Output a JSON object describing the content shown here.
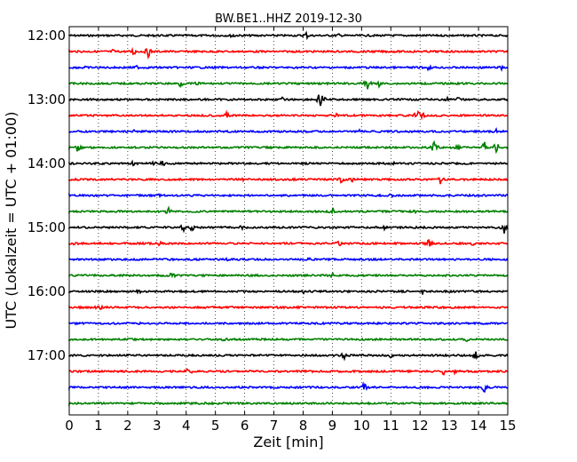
{
  "chart_data": {
    "type": "line",
    "title": "BW.BE1..HHZ 2019-12-30",
    "xlabel": "Zeit  [min]",
    "ylabel": "UTC (Lokalzeit = UTC + 01:00)",
    "xlim": [
      0,
      15
    ],
    "x_ticks": [
      "0",
      "1",
      "2",
      "3",
      "4",
      "5",
      "6",
      "7",
      "8",
      "9",
      "10",
      "11",
      "12",
      "13",
      "14",
      "15"
    ],
    "y_ticks": [
      "12:00",
      "13:00",
      "14:00",
      "15:00",
      "16:00",
      "17:00"
    ],
    "vertical_grid": "dotted",
    "trace_colors": [
      "#000000",
      "#ff0000",
      "#0000ff",
      "#008000"
    ],
    "series": [
      {
        "start": "12:00",
        "events": [
          [
            5.6,
            4
          ],
          [
            8.1,
            5
          ],
          [
            9.2,
            3
          ]
        ]
      },
      {
        "start": "12:15",
        "events": [
          [
            2.2,
            6
          ],
          [
            2.7,
            7
          ],
          [
            1.5,
            3
          ]
        ]
      },
      {
        "start": "12:30",
        "events": [
          [
            0.5,
            3
          ],
          [
            2.3,
            3
          ],
          [
            12.3,
            4
          ],
          [
            14.8,
            5
          ]
        ]
      },
      {
        "start": "12:45",
        "events": [
          [
            3.8,
            5
          ],
          [
            4.4,
            4
          ],
          [
            10.2,
            10
          ],
          [
            10.6,
            4
          ]
        ]
      },
      {
        "start": "13:00",
        "events": [
          [
            8.6,
            14
          ],
          [
            7.3,
            3
          ],
          [
            12.9,
            4
          ],
          [
            13.3,
            3
          ]
        ]
      },
      {
        "start": "13:15",
        "events": [
          [
            5.4,
            5
          ],
          [
            9.1,
            4
          ],
          [
            11.9,
            7
          ],
          [
            12.1,
            5
          ]
        ]
      },
      {
        "start": "13:30",
        "events": [
          [
            2.2,
            3
          ],
          [
            9.9,
            3
          ],
          [
            14.6,
            3
          ]
        ]
      },
      {
        "start": "13:45",
        "events": [
          [
            0.3,
            6
          ],
          [
            12.5,
            9
          ],
          [
            13.3,
            6
          ],
          [
            14.2,
            7
          ],
          [
            14.6,
            9
          ]
        ]
      },
      {
        "start": "14:00",
        "events": [
          [
            2.2,
            4
          ],
          [
            3.2,
            4
          ],
          [
            2.9,
            3
          ],
          [
            11.1,
            3
          ]
        ]
      },
      {
        "start": "14:15",
        "events": [
          [
            5.9,
            3
          ],
          [
            9.3,
            5
          ],
          [
            9.7,
            4
          ],
          [
            12.7,
            6
          ]
        ]
      },
      {
        "start": "14:30",
        "events": [
          [
            3.1,
            3
          ],
          [
            11.0,
            3
          ]
        ]
      },
      {
        "start": "14:45",
        "events": [
          [
            3.4,
            6
          ],
          [
            9.0,
            6
          ],
          [
            11.8,
            3
          ]
        ]
      },
      {
        "start": "15:00",
        "events": [
          [
            3.9,
            6
          ],
          [
            4.2,
            5
          ],
          [
            5.9,
            3
          ],
          [
            10.8,
            4
          ],
          [
            14.9,
            9
          ]
        ]
      },
      {
        "start": "15:15",
        "events": [
          [
            0.2,
            4
          ],
          [
            3.1,
            4
          ],
          [
            9.2,
            5
          ],
          [
            12.3,
            8
          ],
          [
            13.8,
            3
          ]
        ]
      },
      {
        "start": "15:30",
        "events": [
          [
            5.4,
            3
          ],
          [
            8.2,
            3
          ]
        ]
      },
      {
        "start": "15:45",
        "events": [
          [
            0.3,
            3
          ],
          [
            3.5,
            6
          ],
          [
            9.0,
            3
          ]
        ]
      },
      {
        "start": "16:00",
        "events": [
          [
            2.4,
            5
          ],
          [
            8.0,
            3
          ],
          [
            12.1,
            5
          ]
        ]
      },
      {
        "start": "16:15",
        "events": [
          [
            1.0,
            6
          ],
          [
            7.8,
            3
          ]
        ]
      },
      {
        "start": "16:30",
        "events": [
          [
            2.4,
            2
          ],
          [
            7.1,
            2
          ]
        ]
      },
      {
        "start": "16:45",
        "events": [
          [
            5.3,
            3
          ],
          [
            13.6,
            3
          ]
        ]
      },
      {
        "start": "17:00",
        "events": [
          [
            9.4,
            6
          ],
          [
            13.9,
            6
          ],
          [
            11.0,
            3
          ]
        ]
      },
      {
        "start": "17:15",
        "events": [
          [
            4.1,
            8
          ],
          [
            12.8,
            5
          ],
          [
            13.2,
            3
          ]
        ]
      },
      {
        "start": "17:30",
        "events": [
          [
            10.1,
            7
          ],
          [
            14.2,
            7
          ],
          [
            8.7,
            3
          ]
        ]
      },
      {
        "start": "17:45",
        "events": [
          [
            8.1,
            2
          ],
          [
            12.0,
            2
          ]
        ]
      }
    ]
  }
}
